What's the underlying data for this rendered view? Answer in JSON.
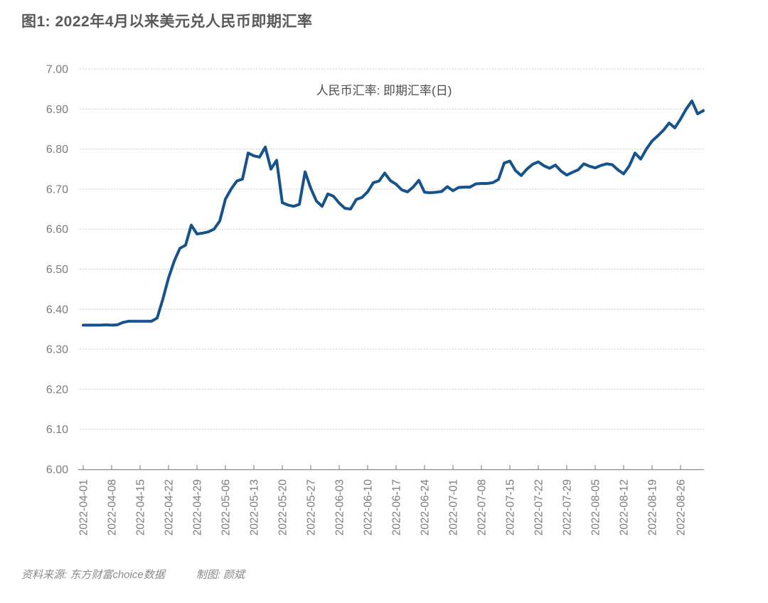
{
  "title": "图1: 2022年4月以来美元兑人民币即期汇率",
  "footer": {
    "source": "资料来源: 东方财富choice数据",
    "credit": "制图: 颜斌"
  },
  "colors": {
    "line": "#16538c",
    "title_text": "#595959",
    "axis_text": "#7b7b7b",
    "axis_line": "#8c8c8c",
    "grid_line": "#bdbdbd",
    "legend_text": "#4c4c52",
    "footer_text": "#8a8a8a"
  },
  "chart_data": {
    "type": "line",
    "title": "人民币汇率: 即期汇率(日)",
    "legend": [
      "人民币汇率: 即期汇率(日)"
    ],
    "legend_position": "top-center",
    "grid": true,
    "grid_style": "dotted-horizontal",
    "ylim": [
      6.0,
      7.0
    ],
    "y_tick_step": 0.1,
    "y_tick_labels": [
      "7.00",
      "6.90",
      "6.80",
      "6.70",
      "6.60",
      "6.50",
      "6.40",
      "6.30",
      "6.20",
      "6.10",
      "6.00"
    ],
    "x_tick_labels": [
      "2022-04-01",
      "2022-04-08",
      "2022-04-15",
      "2022-04-22",
      "2022-04-29",
      "2022-05-06",
      "2022-05-13",
      "2022-05-20",
      "2022-05-27",
      "2022-06-03",
      "2022-06-10",
      "2022-06-17",
      "2022-06-24",
      "2022-07-01",
      "2022-07-08",
      "2022-07-15",
      "2022-07-22",
      "2022-07-29",
      "2022-08-05",
      "2022-08-12",
      "2022-08-19",
      "2022-08-26"
    ],
    "x_tick_every_n_days": 5,
    "x": [
      "2022-04-01",
      "2022-04-04",
      "2022-04-05",
      "2022-04-06",
      "2022-04-07",
      "2022-04-08",
      "2022-04-11",
      "2022-04-12",
      "2022-04-13",
      "2022-04-14",
      "2022-04-15",
      "2022-04-18",
      "2022-04-19",
      "2022-04-20",
      "2022-04-21",
      "2022-04-22",
      "2022-04-25",
      "2022-04-26",
      "2022-04-27",
      "2022-04-28",
      "2022-04-29",
      "2022-05-02",
      "2022-05-03",
      "2022-05-04",
      "2022-05-05",
      "2022-05-06",
      "2022-05-09",
      "2022-05-10",
      "2022-05-11",
      "2022-05-12",
      "2022-05-13",
      "2022-05-16",
      "2022-05-17",
      "2022-05-18",
      "2022-05-19",
      "2022-05-20",
      "2022-05-23",
      "2022-05-24",
      "2022-05-25",
      "2022-05-26",
      "2022-05-27",
      "2022-05-30",
      "2022-05-31",
      "2022-06-01",
      "2022-06-02",
      "2022-06-03",
      "2022-06-06",
      "2022-06-07",
      "2022-06-08",
      "2022-06-09",
      "2022-06-10",
      "2022-06-13",
      "2022-06-14",
      "2022-06-15",
      "2022-06-16",
      "2022-06-17",
      "2022-06-20",
      "2022-06-21",
      "2022-06-22",
      "2022-06-23",
      "2022-06-24",
      "2022-06-27",
      "2022-06-28",
      "2022-06-29",
      "2022-06-30",
      "2022-07-01",
      "2022-07-04",
      "2022-07-05",
      "2022-07-06",
      "2022-07-07",
      "2022-07-08",
      "2022-07-11",
      "2022-07-12",
      "2022-07-13",
      "2022-07-14",
      "2022-07-15",
      "2022-07-18",
      "2022-07-19",
      "2022-07-20",
      "2022-07-21",
      "2022-07-22",
      "2022-07-25",
      "2022-07-26",
      "2022-07-27",
      "2022-07-28",
      "2022-07-29",
      "2022-08-01",
      "2022-08-02",
      "2022-08-03",
      "2022-08-04",
      "2022-08-05",
      "2022-08-08",
      "2022-08-09",
      "2022-08-10",
      "2022-08-11",
      "2022-08-12",
      "2022-08-15",
      "2022-08-16",
      "2022-08-17",
      "2022-08-18",
      "2022-08-19",
      "2022-08-22",
      "2022-08-23",
      "2022-08-24",
      "2022-08-25",
      "2022-08-26",
      "2022-08-29",
      "2022-08-30",
      "2022-08-31",
      "2022-09-01"
    ],
    "values": [
      6.36,
      6.36,
      6.36,
      6.36,
      6.361,
      6.36,
      6.361,
      6.367,
      6.37,
      6.37,
      6.37,
      6.37,
      6.37,
      6.378,
      6.425,
      6.478,
      6.52,
      6.552,
      6.56,
      6.61,
      6.588,
      6.59,
      6.593,
      6.6,
      6.62,
      6.675,
      6.7,
      6.72,
      6.725,
      6.79,
      6.783,
      6.78,
      6.805,
      6.75,
      6.772,
      6.666,
      6.66,
      6.657,
      6.662,
      6.743,
      6.702,
      6.67,
      6.657,
      6.688,
      6.682,
      6.665,
      6.652,
      6.65,
      6.674,
      6.679,
      6.693,
      6.716,
      6.72,
      6.74,
      6.721,
      6.712,
      6.698,
      6.693,
      6.705,
      6.722,
      6.692,
      6.691,
      6.692,
      6.694,
      6.706,
      6.696,
      6.704,
      6.705,
      6.705,
      6.713,
      6.714,
      6.714,
      6.716,
      6.724,
      6.765,
      6.77,
      6.746,
      6.734,
      6.75,
      6.762,
      6.768,
      6.758,
      6.752,
      6.76,
      6.745,
      6.735,
      6.742,
      6.748,
      6.763,
      6.757,
      6.753,
      6.759,
      6.763,
      6.761,
      6.748,
      6.738,
      6.758,
      6.79,
      6.775,
      6.8,
      6.82,
      6.833,
      6.847,
      6.865,
      6.853,
      6.875,
      6.9,
      6.92,
      6.888,
      6.896
    ]
  }
}
